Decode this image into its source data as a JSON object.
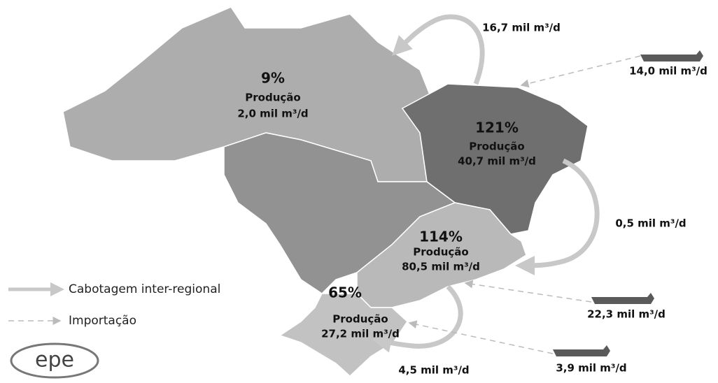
{
  "regions": [
    {
      "share": "9%",
      "label": "Produção",
      "value": "2,0 mil m³/d"
    },
    {
      "share": "121%",
      "label": "Produção",
      "value": "40,7 mil m³/d"
    },
    {
      "share": "114%",
      "label": "Produção",
      "value": "80,5 mil m³/d"
    },
    {
      "share": "65%",
      "label": "Produção",
      "value": "27,2 mil m³/d"
    }
  ],
  "cabotage": [
    "16,7 mil m³/d",
    "0,5 mil m³/d",
    "4,5 mil m³/d"
  ],
  "imports": [
    "14,0 mil m³/d",
    "22,3 mil m³/d",
    "3,9 mil m³/d"
  ],
  "legend": {
    "cabotage": "Cabotagem inter-regional",
    "imports": "Importação"
  },
  "logo": "epe"
}
